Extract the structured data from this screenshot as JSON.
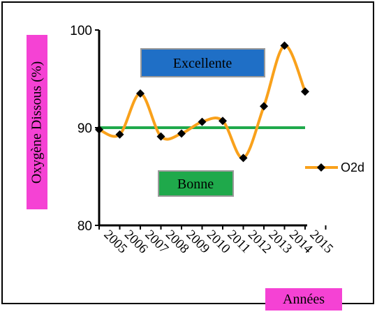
{
  "colors": {
    "series": "#F9A11B",
    "threshold": "#1FA94B",
    "ylabel_bg": "#F542D4",
    "xlabel_bg": "#F542D4",
    "excellent_bg": "#1F6FC6",
    "good_bg": "#1FA94B"
  },
  "chart_data": {
    "type": "line",
    "ylabel": "Oxygène Dissous (%)",
    "xlabel": "Années",
    "ylim": [
      80,
      100
    ],
    "yticks": [
      "80",
      "90",
      "100"
    ],
    "categories": [
      "2005",
      "2006",
      "2007",
      "2008",
      "2009",
      "2010",
      "2011",
      "2012",
      "2013",
      "2014",
      "2015"
    ],
    "series": [
      {
        "name": "O2d",
        "values": [
          89.8,
          89.3,
          93.5,
          89.1,
          89.4,
          90.6,
          90.7,
          86.9,
          92.2,
          98.4,
          93.7
        ]
      }
    ],
    "threshold": 90,
    "annotations": {
      "excellent": "Excellente",
      "good": "Bonne"
    },
    "legend_position": "right",
    "grid": false
  }
}
